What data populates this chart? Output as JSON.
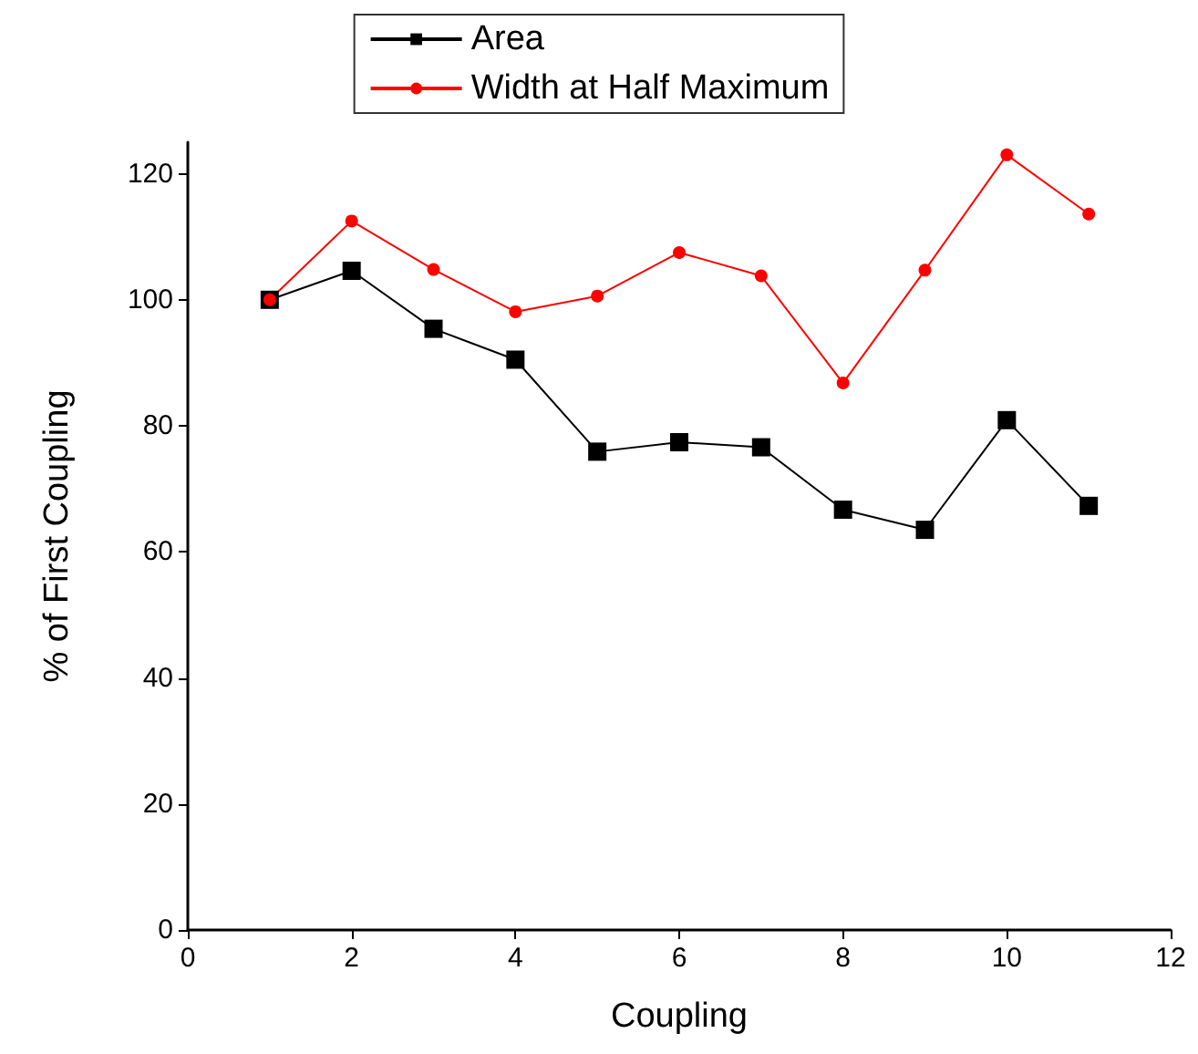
{
  "chart_data": {
    "type": "line",
    "xlabel": "Coupling",
    "ylabel": "% of First Coupling",
    "x": [
      1,
      2,
      3,
      4,
      5,
      6,
      7,
      8,
      9,
      10,
      11
    ],
    "series": [
      {
        "name": "Area",
        "color": "#000000",
        "marker": "square",
        "values": [
          100,
          104.6,
          95.4,
          90.5,
          75.9,
          77.4,
          76.6,
          66.7,
          63.5,
          80.9,
          67.3
        ]
      },
      {
        "name": "Width at Half Maximum",
        "color": "#ff0000",
        "marker": "circle",
        "values": [
          100,
          112.5,
          104.8,
          98.1,
          100.6,
          107.5,
          103.8,
          86.8,
          104.7,
          123.0,
          113.6
        ]
      }
    ],
    "xlim": [
      0,
      12
    ],
    "xticks": [
      0,
      2,
      4,
      6,
      8,
      10,
      12
    ],
    "ylim": [
      0,
      125
    ],
    "yticks": [
      0,
      20,
      40,
      60,
      80,
      100,
      120
    ],
    "grid": false,
    "legend": "top",
    "line_style": "solid"
  }
}
